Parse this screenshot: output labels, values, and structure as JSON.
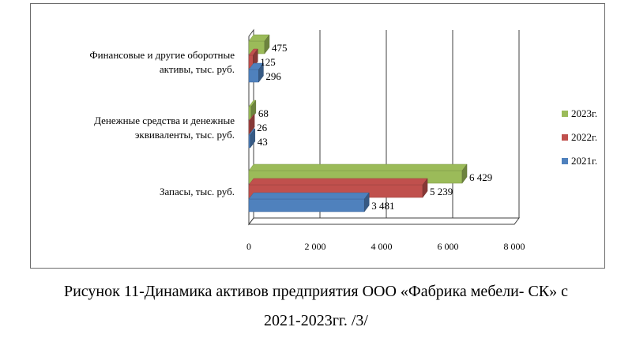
{
  "chart_data": {
    "type": "bar",
    "orientation": "horizontal",
    "categories": [
      [
        "Финансовые и другие оборотные",
        "активы, тыс. руб."
      ],
      [
        "Денежные средства и денежные",
        "эквиваленты, тыс. руб."
      ],
      [
        "Запасы, тыс. руб."
      ]
    ],
    "series": [
      {
        "name": "2023г.",
        "color": "#9bbb59",
        "values": [
          475,
          68,
          6429
        ],
        "labels": [
          "475",
          "68",
          "6 429"
        ]
      },
      {
        "name": "2022г.",
        "color": "#c0504d",
        "values": [
          125,
          26,
          5239
        ],
        "labels": [
          "125",
          "26",
          "5 239"
        ]
      },
      {
        "name": "2021г.",
        "color": "#4f81bd",
        "values": [
          296,
          43,
          3481
        ],
        "labels": [
          "296",
          "43",
          "3 481"
        ]
      }
    ],
    "xticks": [
      0,
      2000,
      4000,
      6000,
      8000
    ],
    "xtick_labels": [
      "0",
      "2 000",
      "4 000",
      "6 000",
      "8 000"
    ],
    "xlim": [
      0,
      8000
    ],
    "grid": true,
    "style": "3d",
    "legend_position": "right"
  },
  "caption": {
    "line1": "Рисунок 11-Динамика активов предприятия ООО «Фабрика мебели- СК» с",
    "line2": "2021-2023гг. /3/"
  }
}
